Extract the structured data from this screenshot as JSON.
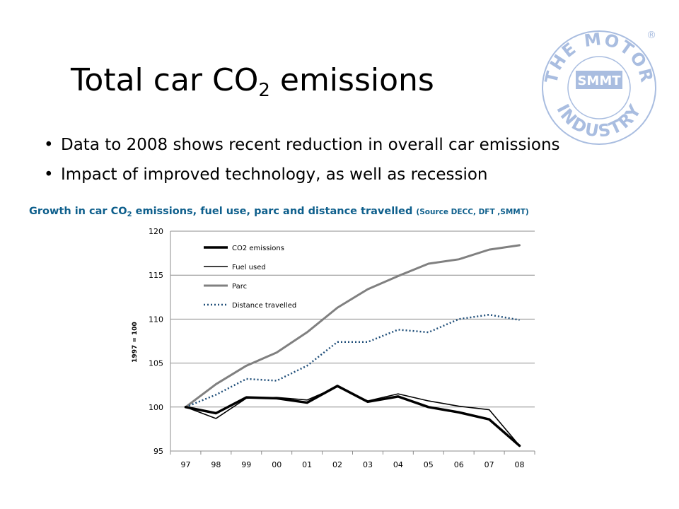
{
  "slide": {
    "title_main": "Total car CO",
    "title_sub": "2",
    "title_end": " emissions",
    "bullets": [
      "Data to 2008 shows recent reduction in overall car emissions",
      "Impact of improved technology, as well as recession"
    ],
    "caption_main": "Growth in car CO",
    "caption_sub": "2",
    "caption_end": " emissions, fuel use, parc and distance travelled ",
    "caption_source": "(Source DECC, DFT ,SMMT)"
  },
  "logo": {
    "top_text": "THE MOTOR",
    "bottom_text": "INDUSTRY",
    "center_text": "SMMT",
    "registered": "®",
    "color": "#a9bde0"
  },
  "chart_data": {
    "type": "line",
    "categories": [
      "97",
      "98",
      "99",
      "00",
      "01",
      "02",
      "03",
      "04",
      "05",
      "06",
      "07",
      "08"
    ],
    "ylabel": "1997 = 100",
    "xlabel": "",
    "ylim": [
      95,
      120
    ],
    "yticks": [
      95,
      100,
      105,
      110,
      115,
      120
    ],
    "grid": true,
    "legend_position": "top-left",
    "series": [
      {
        "name": "CO2 emissions",
        "color": "#000000",
        "width": 3.5,
        "dash": "",
        "values": [
          100.0,
          99.3,
          101.1,
          101.0,
          100.5,
          102.4,
          100.6,
          101.2,
          100.0,
          99.4,
          98.6,
          95.6
        ]
      },
      {
        "name": "Fuel used",
        "color": "#000000",
        "width": 1.6,
        "dash": "",
        "values": [
          100.0,
          98.7,
          101.0,
          101.1,
          100.8,
          102.3,
          100.7,
          101.5,
          100.7,
          100.1,
          99.7,
          95.6
        ]
      },
      {
        "name": "Parc",
        "color": "#808080",
        "width": 3,
        "dash": "",
        "values": [
          100.0,
          102.6,
          104.7,
          106.2,
          108.5,
          111.3,
          113.4,
          114.9,
          116.3,
          116.8,
          117.9,
          118.4
        ]
      },
      {
        "name": "Distance travelled",
        "color": "#1f4e79",
        "width": 2.5,
        "dash": "2,3",
        "values": [
          100.0,
          101.4,
          103.2,
          103.0,
          104.7,
          107.4,
          107.4,
          108.8,
          108.5,
          110.0,
          110.5,
          109.9
        ]
      }
    ]
  }
}
